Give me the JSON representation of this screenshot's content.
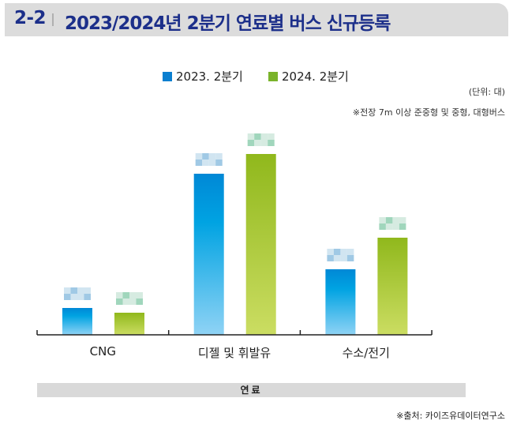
{
  "header": {
    "number": "2-2",
    "title": "2023/2024년 2분기 연료별 버스 신규등록"
  },
  "notes": {
    "unit": "(단위: 대)",
    "scope": "※전장 7m 이상 준중형 및 중형, 대형버스"
  },
  "source": "※출처: 카이즈유데이터연구소",
  "chart_data": {
    "type": "bar",
    "title": "2023/2024년 2분기 연료별 버스 신규등록",
    "xlabel": "연료",
    "ylabel": "",
    "unit": "대",
    "categories": [
      "CNG",
      "디젤 및 휘발유",
      "수소/전기"
    ],
    "series": [
      {
        "name": "2023. 2분기",
        "color": "#0a8fd8",
        "values": [
          272,
          1632,
          664
        ]
      },
      {
        "name": "2024. 2분기",
        "color": "#8cb91e",
        "values": [
          224,
          1832,
          984
        ]
      }
    ],
    "ylim": [
      0,
      2000
    ],
    "grid": false,
    "legend": "top-center",
    "data_labels": "pixelated (unreadable); values estimated from bar heights"
  }
}
